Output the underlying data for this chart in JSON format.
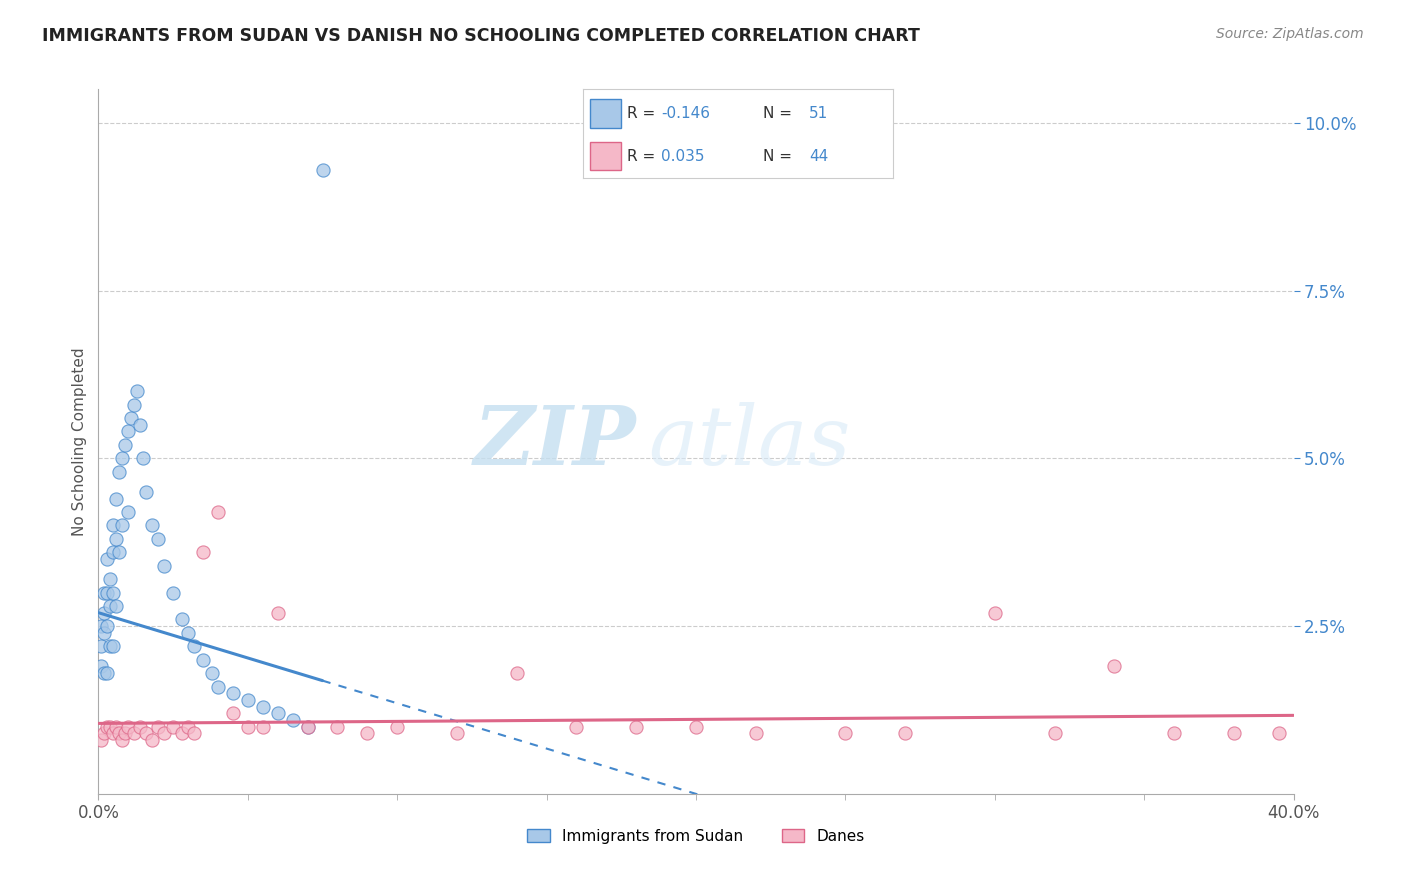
{
  "title": "IMMIGRANTS FROM SUDAN VS DANISH NO SCHOOLING COMPLETED CORRELATION CHART",
  "source": "Source: ZipAtlas.com",
  "ylabel": "No Schooling Completed",
  "xlim": [
    0.0,
    0.4
  ],
  "ylim": [
    0.0,
    0.105
  ],
  "xtick_positions": [
    0.0,
    0.4
  ],
  "xtick_labels": [
    "0.0%",
    "40.0%"
  ],
  "ytick_positions": [
    0.025,
    0.05,
    0.075,
    0.1
  ],
  "ytick_labels": [
    "2.5%",
    "5.0%",
    "7.5%",
    "10.0%"
  ],
  "r_sudan": -0.146,
  "n_sudan": 51,
  "r_danes": 0.035,
  "n_danes": 44,
  "color_sudan": "#a8c8e8",
  "color_danes": "#f5b8c8",
  "color_sudan_line": "#4488cc",
  "color_danes_line": "#dd6688",
  "background_color": "#ffffff",
  "grid_color": "#cccccc",
  "legend_labels": [
    "Immigrants from Sudan",
    "Danes"
  ],
  "sudan_x": [
    0.001,
    0.001,
    0.001,
    0.002,
    0.002,
    0.002,
    0.002,
    0.003,
    0.003,
    0.003,
    0.003,
    0.003,
    0.004,
    0.004,
    0.004,
    0.005,
    0.005,
    0.005,
    0.005,
    0.005,
    0.006,
    0.006,
    0.007,
    0.007,
    0.007,
    0.008,
    0.008,
    0.009,
    0.009,
    0.01,
    0.01,
    0.011,
    0.012,
    0.013,
    0.014,
    0.015,
    0.016,
    0.018,
    0.02,
    0.022,
    0.024,
    0.026,
    0.03,
    0.032,
    0.035,
    0.04,
    0.042,
    0.045,
    0.05,
    0.06,
    0.07
  ],
  "sudan_y": [
    0.021,
    0.019,
    0.018,
    0.024,
    0.022,
    0.02,
    0.016,
    0.026,
    0.024,
    0.022,
    0.018,
    0.014,
    0.025,
    0.023,
    0.019,
    0.03,
    0.028,
    0.026,
    0.022,
    0.018,
    0.032,
    0.028,
    0.038,
    0.034,
    0.028,
    0.044,
    0.038,
    0.048,
    0.04,
    0.052,
    0.044,
    0.054,
    0.058,
    0.06,
    0.056,
    0.062,
    0.056,
    0.054,
    0.05,
    0.046,
    0.042,
    0.04,
    0.036,
    0.032,
    0.028,
    0.024,
    0.022,
    0.02,
    0.018,
    0.016,
    0.093
  ],
  "danes_x": [
    0.001,
    0.002,
    0.003,
    0.004,
    0.005,
    0.006,
    0.007,
    0.008,
    0.009,
    0.01,
    0.012,
    0.014,
    0.016,
    0.018,
    0.02,
    0.022,
    0.025,
    0.028,
    0.03,
    0.032,
    0.035,
    0.04,
    0.045,
    0.05,
    0.055,
    0.06,
    0.07,
    0.08,
    0.09,
    0.1,
    0.12,
    0.14,
    0.16,
    0.18,
    0.2,
    0.22,
    0.25,
    0.27,
    0.3,
    0.32,
    0.34,
    0.36,
    0.38,
    0.395
  ],
  "danes_y": [
    0.008,
    0.009,
    0.01,
    0.01,
    0.009,
    0.01,
    0.009,
    0.008,
    0.009,
    0.01,
    0.009,
    0.01,
    0.009,
    0.008,
    0.01,
    0.009,
    0.01,
    0.009,
    0.01,
    0.009,
    0.036,
    0.042,
    0.012,
    0.01,
    0.01,
    0.027,
    0.01,
    0.01,
    0.009,
    0.01,
    0.009,
    0.018,
    0.01,
    0.01,
    0.01,
    0.009,
    0.009,
    0.009,
    0.027,
    0.009,
    0.019,
    0.009,
    0.009,
    0.009
  ]
}
